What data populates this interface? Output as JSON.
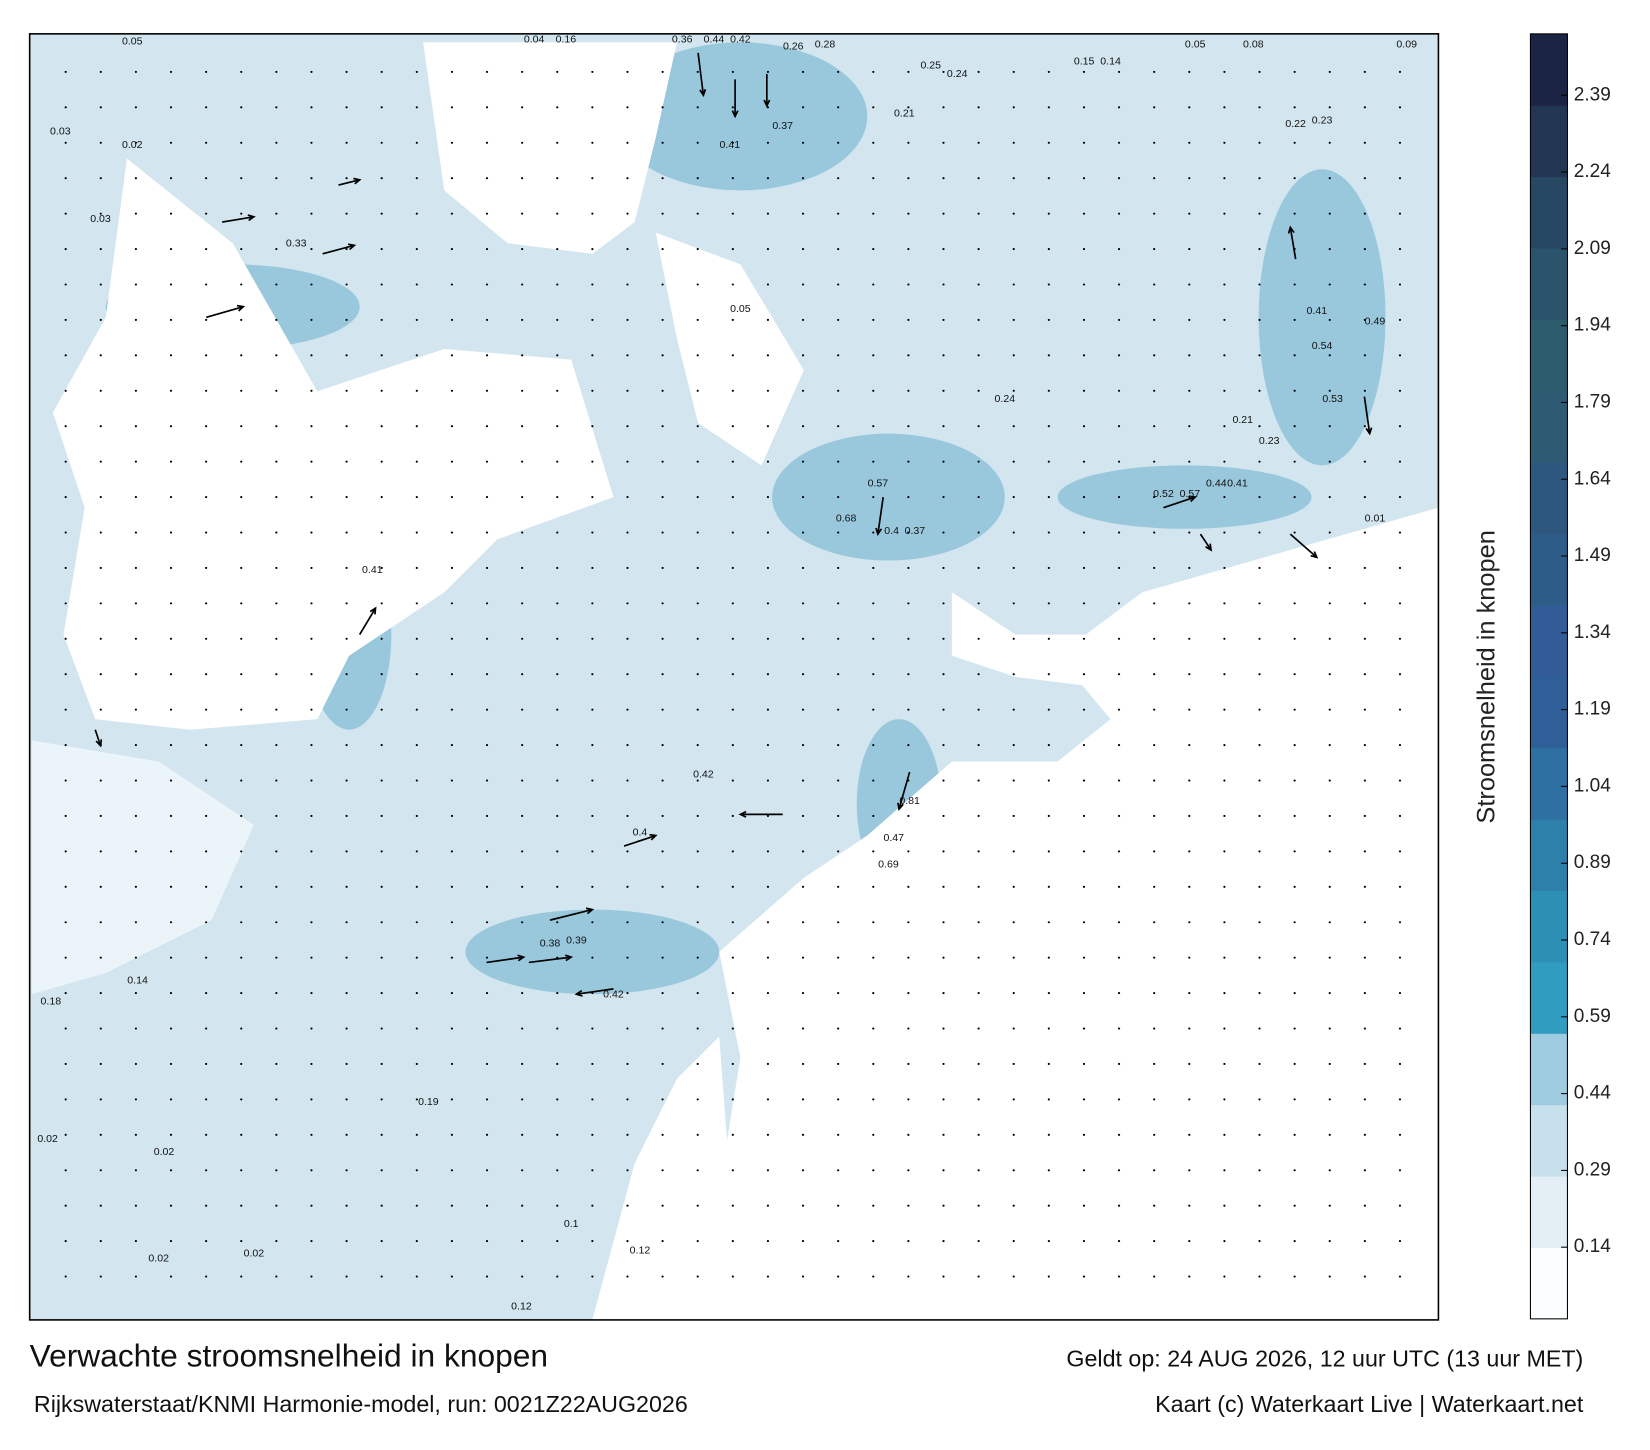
{
  "title": "Verwachte stroomsnelheid in knopen",
  "subtitle": "Rijkswaterstaat/KNMI Harmonie-model, run: 0021Z22AUG2026",
  "valid_time": "Geldt op: 24 AUG 2026, 12 uur UTC (13 uur MET)",
  "credit": "Kaart (c) Waterkaart Live | Waterkaart.net",
  "colorbar": {
    "label": "Stroomsnelheid in knopen",
    "lim": [
      0,
      2.51
    ],
    "ticks": [
      0.14,
      0.29,
      0.44,
      0.59,
      0.74,
      0.89,
      1.04,
      1.19,
      1.34,
      1.49,
      1.64,
      1.79,
      1.94,
      2.09,
      2.24,
      2.39
    ],
    "colors": [
      "#fbfdfe",
      "#e4eff5",
      "#c7e0ec",
      "#9ecbe0",
      "#2f9cc0",
      "#2c90b5",
      "#2d80a9",
      "#2e70a2",
      "#2f5f98",
      "#315c97",
      "#2e5c89",
      "#2d577e",
      "#2e5a73",
      "#2b5d6c",
      "#2a546b",
      "#274863",
      "#223654",
      "#1c2445"
    ]
  },
  "current_labels": [
    0.05,
    0.04,
    0.16,
    0.36,
    0.44,
    0.42,
    0.26,
    0.28,
    0.25,
    0.24,
    0.15,
    0.14,
    0.05,
    0.08,
    0.09,
    0.03,
    0.02,
    0.03,
    0.33,
    0.37,
    0.21,
    0.41,
    0.22,
    0.23,
    0.41,
    0.49,
    0.54,
    0.53,
    0.01,
    0.68,
    0.37,
    0.4,
    0.52,
    0.57,
    0.44,
    0.41,
    0.41,
    0.81,
    0.47,
    0.69,
    0.4,
    0.38,
    0.39,
    0.42,
    0.18,
    0.14,
    0.19,
    0.02,
    0.02,
    0.02,
    0.02,
    0.12,
    0.1,
    0.12,
    0.23,
    0.21,
    0.24,
    0.57,
    0.05,
    0.42
  ]
}
